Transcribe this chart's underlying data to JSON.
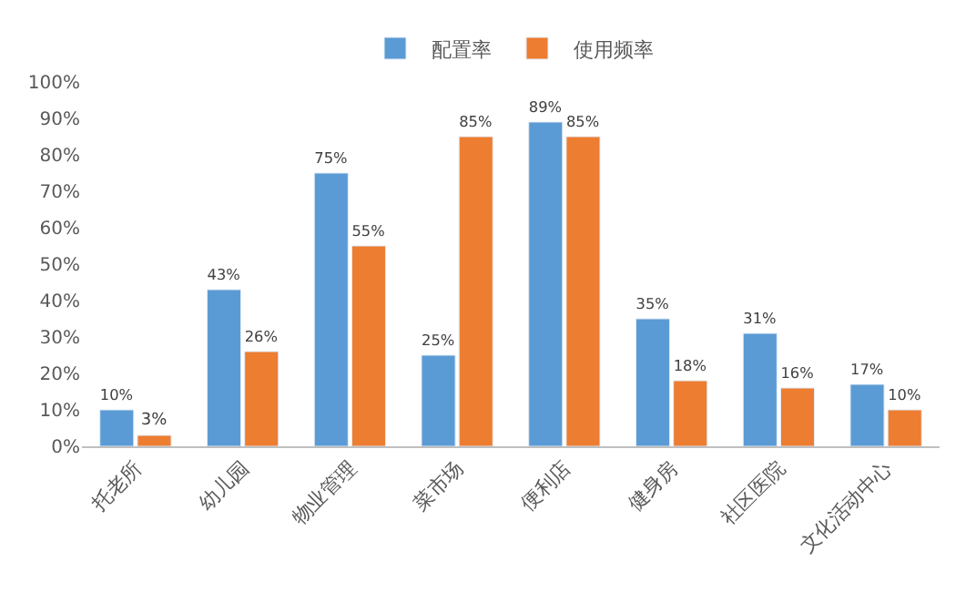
{
  "chart_data": {
    "type": "bar",
    "categories": [
      "托老所",
      "幼儿园",
      "物业管理",
      "菜市场",
      "便利店",
      "健身房",
      "社区医院",
      "文化活动中心"
    ],
    "series": [
      {
        "name": "配置率",
        "color": "#5b9bd5",
        "values": [
          10,
          43,
          75,
          25,
          89,
          35,
          31,
          17
        ],
        "value_labels": [
          "10%",
          "43%",
          "75%",
          "25%",
          "89%",
          "35%",
          "31%",
          "17%"
        ]
      },
      {
        "name": "使用频率",
        "color": "#ed7d31",
        "values": [
          3,
          26,
          55,
          85,
          85,
          18,
          16,
          10
        ],
        "value_labels": [
          "3%",
          "26%",
          "55%",
          "85%",
          "85%",
          "18%",
          "16%",
          "10%"
        ]
      }
    ],
    "ylim": [
      0,
      100
    ],
    "yticks": [
      {
        "value": 0,
        "label": "0%"
      },
      {
        "value": 10,
        "label": "10%"
      },
      {
        "value": 20,
        "label": "20%"
      },
      {
        "value": 30,
        "label": "30%"
      },
      {
        "value": 40,
        "label": "40%"
      },
      {
        "value": 50,
        "label": "50%"
      },
      {
        "value": 60,
        "label": "60%"
      },
      {
        "value": 70,
        "label": "70%"
      },
      {
        "value": 80,
        "label": "80%"
      },
      {
        "value": 90,
        "label": "90%"
      },
      {
        "value": 100,
        "label": "100%"
      }
    ],
    "legend": "top"
  }
}
